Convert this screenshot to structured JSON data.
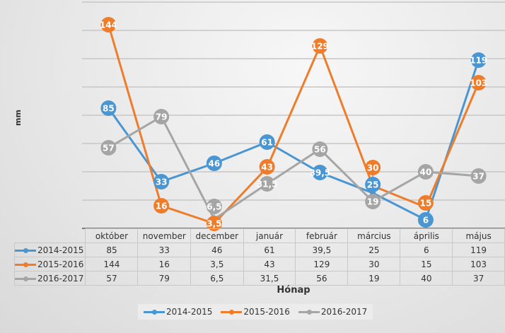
{
  "chart_data": {
    "type": "line",
    "categories": [
      "október",
      "november",
      "december",
      "január",
      "február",
      "március",
      "április",
      "május"
    ],
    "series": [
      {
        "name": "2014-2015",
        "color": "#4a96d2",
        "values": [
          85,
          33,
          46,
          61,
          39.5,
          25,
          6,
          119
        ]
      },
      {
        "name": "2015-2016",
        "color": "#ee7d2b",
        "values": [
          144,
          16,
          3.5,
          43,
          129,
          30,
          15,
          103
        ]
      },
      {
        "name": "2016-2017",
        "color": "#a5a5a5",
        "values": [
          57,
          79,
          6.5,
          31.5,
          56,
          19,
          40,
          37
        ]
      }
    ],
    "value_labels": {
      "2014-2015": [
        "85",
        "33",
        "46",
        "61",
        "39,5",
        "25",
        "6",
        "119"
      ],
      "2015-2016": [
        "144",
        "16",
        "3,5",
        "43",
        "129",
        "30",
        "15",
        "103"
      ],
      "2016-2017": [
        "57",
        "79",
        "6,5",
        "31,5",
        "56",
        "19",
        "40",
        "37"
      ]
    },
    "xlabel": "Hónap",
    "ylabel": "mm",
    "ylim": [
      0,
      160
    ],
    "grid": true,
    "legend": "bottom",
    "data_table": true
  }
}
